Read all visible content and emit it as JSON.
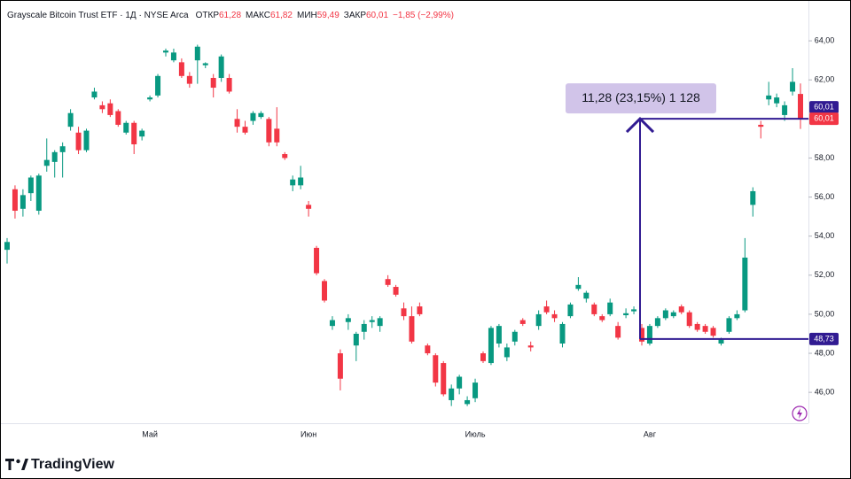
{
  "chart_data": {
    "type": "candlestick",
    "title": "Grayscale Bitcoin Trust ETF · 1Д · NYSE Arca",
    "ohlc_header": [
      {
        "label": "ОТКР",
        "value": "61,28"
      },
      {
        "label": "МАКС",
        "value": "61,82"
      },
      {
        "label": "МИН",
        "value": "59,49"
      },
      {
        "label": "ЗАКР",
        "value": "60,01"
      }
    ],
    "change": "−1,85 (−2,99%)",
    "categories": [
      null,
      null,
      null,
      null,
      null,
      null,
      null,
      null,
      null,
      null,
      null,
      null,
      null,
      null,
      null,
      null,
      null,
      null,
      "Май",
      null,
      null,
      null,
      null,
      null,
      null,
      null,
      null,
      null,
      null,
      null,
      null,
      null,
      null,
      null,
      null,
      null,
      null,
      null,
      "Июн",
      null,
      null,
      null,
      null,
      null,
      null,
      null,
      null,
      null,
      null,
      null,
      null,
      null,
      null,
      null,
      null,
      null,
      null,
      null,
      null,
      "Июль",
      null,
      null,
      null,
      null,
      null,
      null,
      null,
      null,
      null,
      null,
      null,
      null,
      null,
      null,
      null,
      null,
      null,
      null,
      null,
      null,
      null,
      "Авг",
      null,
      null,
      null,
      null,
      null,
      null,
      null,
      null,
      null,
      null,
      null,
      null,
      null,
      null,
      null,
      null,
      null,
      null,
      null
    ],
    "open": [
      53.3,
      56.4,
      55.4,
      56.2,
      55.3,
      57.6,
      57.8,
      58.3,
      59.6,
      59.3,
      58.4,
      61.1,
      60.7,
      60.8,
      60.4,
      59.3,
      59.8,
      59.1,
      61.0,
      61.2,
      63.4,
      63.0,
      62.9,
      62.2,
      63.0,
      62.75,
      62.1,
      62.1,
      62.1,
      60.0,
      59.6,
      59.9,
      60.1,
      60.0,
      59.5,
      58.2,
      56.6,
      56.6,
      55.6,
      53.4,
      51.7,
      49.4,
      48.0,
      49.6,
      48.4,
      49.1,
      49.6,
      49.4,
      51.8,
      51.4,
      50.3,
      49.9,
      50.4,
      48.4,
      47.9,
      47.5,
      45.6,
      46.2,
      45.4,
      45.7,
      48.0,
      47.5,
      48.5,
      47.8,
      48.6,
      49.7,
      48.4,
      49.4,
      50.4,
      50.0,
      48.5,
      49.9,
      51.3,
      50.8,
      50.5,
      49.9,
      50.0,
      49.4,
      49.95,
      50.15,
      49.3,
      48.5,
      49.4,
      49.8,
      49.9,
      50.4,
      50.1,
      49.5,
      49.4,
      49.3,
      48.5,
      49.1,
      49.8,
      50.2,
      55.6,
      59.7,
      61.0,
      60.8,
      60.2,
      61.4,
      61.28
    ],
    "high": [
      53.9,
      56.6,
      56.4,
      57.1,
      57.2,
      59.0,
      58.4,
      58.8,
      60.5,
      59.6,
      59.5,
      61.6,
      60.9,
      61.0,
      60.5,
      59.9,
      59.9,
      59.5,
      61.2,
      62.3,
      63.6,
      63.6,
      63.1,
      62.4,
      63.8,
      62.9,
      62.3,
      63.3,
      62.3,
      60.5,
      59.9,
      60.4,
      60.4,
      60.1,
      60.6,
      58.3,
      57.1,
      57.6,
      55.8,
      53.5,
      51.8,
      49.9,
      48.2,
      50.0,
      49.1,
      49.7,
      49.9,
      49.9,
      52.0,
      51.5,
      50.6,
      50.4,
      50.6,
      48.5,
      48.0,
      47.6,
      46.4,
      46.9,
      45.8,
      46.7,
      48.1,
      49.4,
      49.5,
      48.5,
      49.2,
      49.8,
      48.6,
      50.2,
      50.7,
      50.2,
      49.6,
      50.6,
      51.9,
      51.2,
      50.6,
      50.0,
      50.8,
      49.6,
      50.3,
      50.4,
      49.5,
      49.5,
      49.9,
      50.3,
      50.2,
      50.5,
      50.2,
      49.6,
      49.5,
      49.4,
      48.8,
      49.9,
      50.2,
      53.9,
      56.5,
      59.9,
      61.9,
      61.3,
      60.9,
      62.6,
      61.82
    ],
    "low": [
      52.6,
      54.9,
      55.0,
      55.8,
      55.1,
      57.3,
      57.0,
      57.0,
      59.4,
      58.2,
      58.3,
      61.0,
      60.3,
      60.1,
      59.6,
      59.2,
      58.2,
      58.9,
      60.9,
      61.1,
      63.2,
      62.9,
      62.1,
      61.6,
      61.8,
      62.6,
      61.1,
      61.9,
      61.3,
      59.3,
      59.2,
      59.7,
      60.0,
      58.6,
      58.6,
      57.9,
      56.3,
      56.4,
      55.0,
      52.0,
      50.6,
      49.2,
      46.1,
      49.2,
      47.6,
      48.7,
      49.3,
      49.1,
      51.4,
      50.9,
      49.7,
      48.5,
      49.9,
      47.9,
      46.3,
      45.8,
      45.3,
      45.9,
      45.3,
      45.5,
      47.5,
      47.4,
      48.3,
      47.6,
      48.4,
      49.4,
      48.1,
      49.2,
      50.0,
      49.6,
      48.3,
      49.8,
      51.2,
      50.6,
      49.9,
      49.6,
      49.9,
      48.7,
      49.8,
      50.0,
      48.4,
      48.4,
      49.3,
      49.7,
      49.8,
      50.0,
      49.3,
      49.1,
      49.0,
      48.8,
      48.4,
      49.0,
      49.7,
      50.1,
      55.0,
      59.0,
      60.7,
      60.6,
      59.9,
      61.2,
      59.49
    ],
    "close": [
      53.7,
      55.3,
      56.1,
      57.0,
      57.1,
      57.9,
      58.3,
      58.6,
      60.3,
      58.4,
      59.4,
      61.4,
      60.5,
      60.2,
      59.7,
      59.8,
      58.7,
      59.4,
      61.1,
      62.2,
      63.5,
      63.4,
      62.2,
      61.8,
      63.7,
      62.85,
      61.6,
      63.2,
      61.4,
      59.6,
      59.3,
      60.3,
      60.3,
      58.8,
      58.8,
      58.0,
      56.9,
      57.0,
      55.4,
      52.1,
      50.7,
      49.7,
      46.7,
      49.8,
      49.0,
      49.5,
      49.7,
      49.8,
      51.5,
      51.0,
      49.9,
      48.6,
      50.0,
      48.0,
      46.5,
      45.9,
      46.2,
      46.8,
      45.6,
      46.5,
      47.6,
      49.3,
      49.4,
      48.3,
      49.1,
      49.5,
      48.3,
      50.0,
      50.1,
      49.8,
      49.5,
      50.5,
      51.5,
      51.1,
      50.0,
      49.7,
      50.6,
      48.8,
      50.05,
      50.25,
      48.6,
      49.4,
      49.8,
      50.2,
      50.1,
      50.1,
      49.4,
      49.2,
      49.1,
      48.9,
      48.7,
      49.8,
      50.0,
      52.9,
      56.3,
      59.6,
      61.2,
      61.1,
      60.7,
      61.9,
      60.01
    ],
    "up_color": "#089981",
    "down_color": "#f23645",
    "ylim": [
      44.42,
      66.09
    ],
    "yticks": [
      {
        "value": 46,
        "label": "46,00"
      },
      {
        "value": 48,
        "label": "48,00"
      },
      {
        "value": 50,
        "label": "50,00"
      },
      {
        "value": 52,
        "label": "52,00"
      },
      {
        "value": 54,
        "label": "54,00"
      },
      {
        "value": 56,
        "label": "56,00"
      },
      {
        "value": 58,
        "label": "58,00"
      },
      {
        "value": 60,
        "label": "60,00"
      },
      {
        "value": 62,
        "label": "62,00"
      },
      {
        "value": 64,
        "label": "64,00"
      }
    ],
    "grid": false,
    "last_price": {
      "value": 60.01,
      "label": "60,01",
      "color": "#f23645"
    },
    "measurement": {
      "start": {
        "value": 48.73,
        "label": "48,73"
      },
      "end": {
        "value": 60.01,
        "label": "60,01"
      },
      "text": "11,28 (23,15%) 1 128",
      "color": "#311b92"
    },
    "brand": "TradingView"
  }
}
